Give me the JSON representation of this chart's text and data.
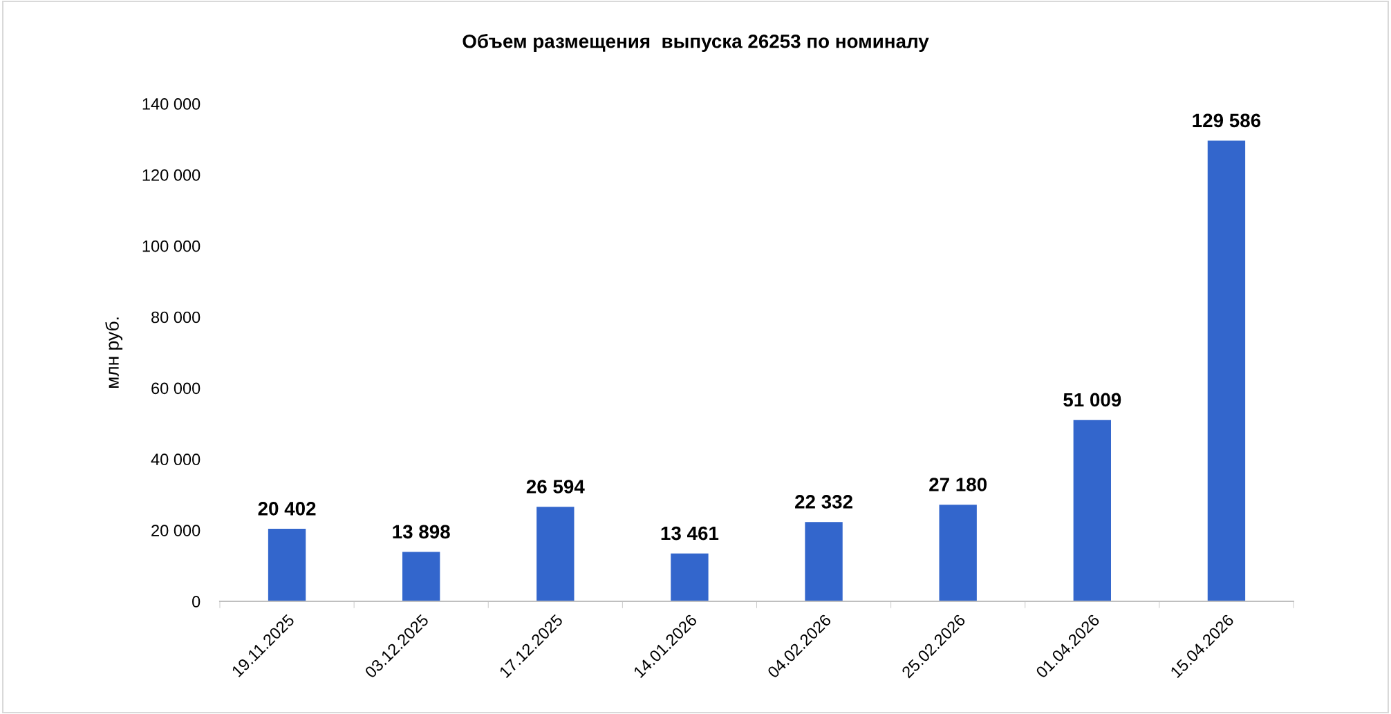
{
  "chart_data": {
    "type": "bar",
    "title": "Объем размещения  выпуска 26253 по номиналу",
    "ylabel": "млн руб.",
    "categories": [
      "19.11.2025",
      "03.12.2025",
      "17.12.2025",
      "14.01.2026",
      "04.02.2026",
      "25.02.2026",
      "01.04.2026",
      "15.04.2026"
    ],
    "values": [
      20402,
      13898,
      26594,
      13461,
      22332,
      27180,
      51009,
      129586
    ],
    "value_labels": [
      "20 402",
      "13 898",
      "26 594",
      "13 461",
      "22 332",
      "27 180",
      "51 009",
      "129 586"
    ],
    "color": "#3366cc",
    "ylim": [
      0,
      140000
    ],
    "yticks": [
      0,
      {
        "value": 20000,
        "label": "20 000"
      },
      {
        "value": 40000,
        "label": "40 000"
      },
      {
        "value": 60000,
        "label": "60 000"
      },
      {
        "value": 80000,
        "label": "80 000"
      },
      {
        "value": 100000,
        "label": "100 000"
      },
      {
        "value": 120000,
        "label": "120 000"
      },
      {
        "value": 140000,
        "label": "140 000"
      }
    ],
    "grid": false,
    "legend": false
  }
}
